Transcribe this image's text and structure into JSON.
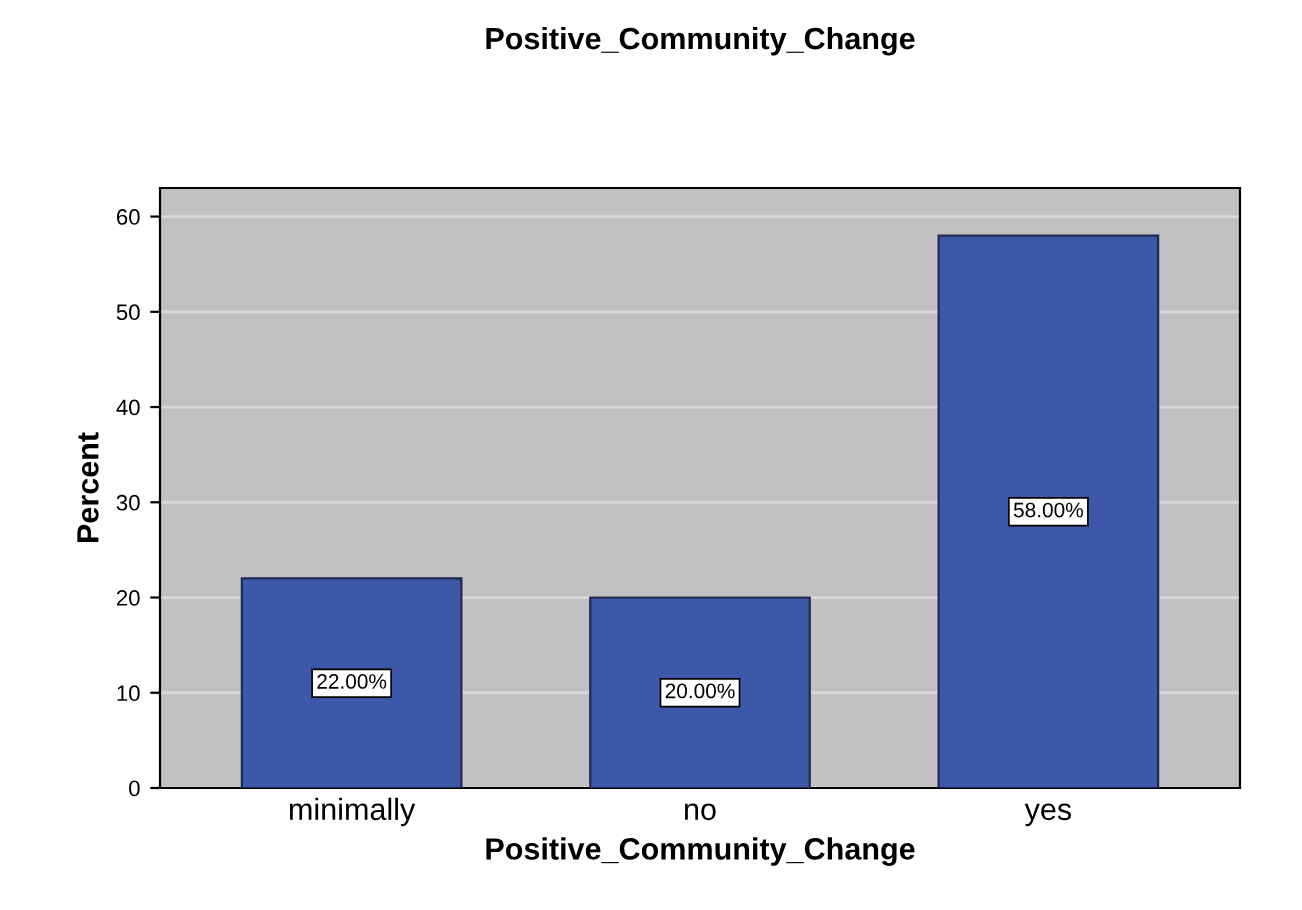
{
  "chart_data": {
    "type": "bar",
    "title": "Positive_Community_Change",
    "xlabel": "Positive_Community_Change",
    "ylabel": "Percent",
    "categories": [
      "minimally",
      "no",
      "yes"
    ],
    "values": [
      22,
      20,
      58
    ],
    "value_labels": [
      "22.00%",
      "20.00%",
      "58.00%"
    ],
    "color": "#3d58a8",
    "ylim": [
      0,
      63
    ],
    "yticks": [
      0,
      10,
      20,
      30,
      40,
      50,
      60
    ],
    "grid": "y"
  }
}
